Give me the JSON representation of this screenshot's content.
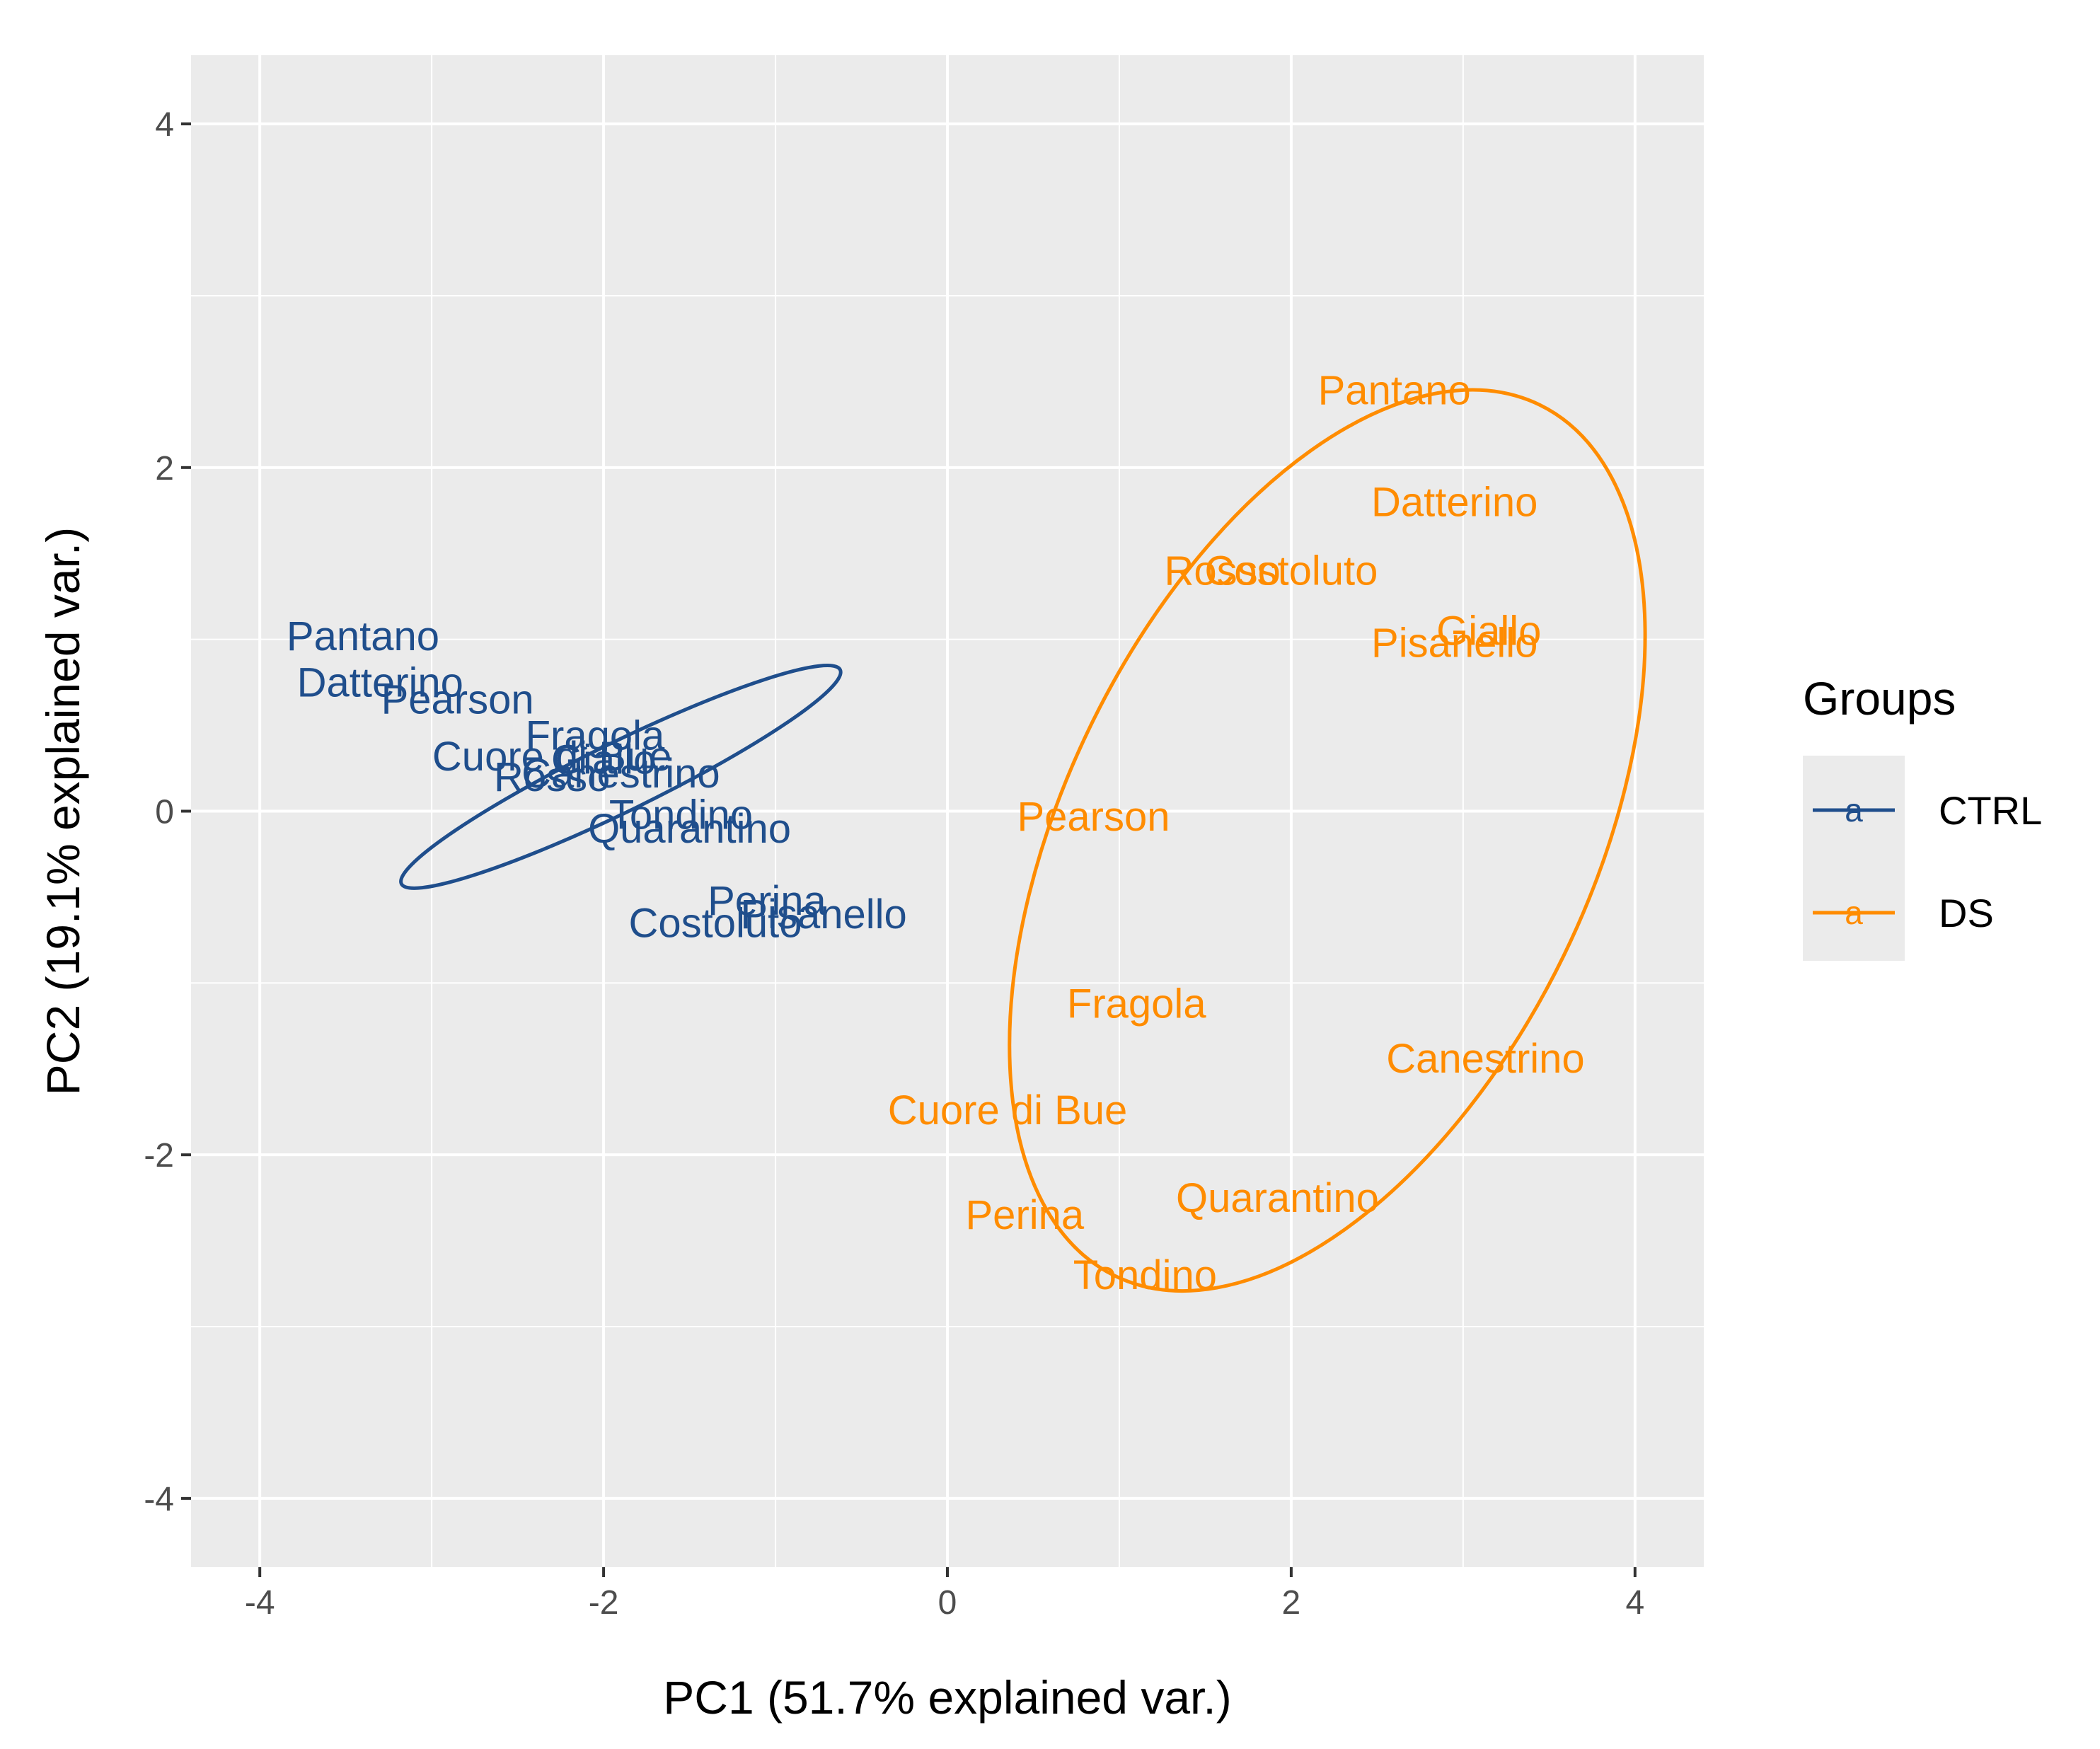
{
  "chart_data": {
    "type": "scatter",
    "title": "",
    "xlabel": "PC1 (51.7% explained var.)",
    "ylabel": "PC2 (19.1% explained var.)",
    "xlim": [
      -4.4,
      4.4
    ],
    "ylim": [
      -4.4,
      4.4
    ],
    "xticks": [
      -4,
      -2,
      0,
      2,
      4
    ],
    "yticks": [
      -4,
      -2,
      0,
      2,
      4
    ],
    "grid": true,
    "legend": {
      "title": "Groups",
      "position": "right",
      "key_glyph": "a",
      "entries": [
        "CTRL",
        "DS"
      ]
    },
    "series": [
      {
        "name": "CTRL",
        "color": "#1f4e8c",
        "points": [
          {
            "label": "Pantano",
            "x": -3.4,
            "y": 1.02
          },
          {
            "label": "Datterino",
            "x": -3.3,
            "y": 0.75
          },
          {
            "label": "Pearson",
            "x": -2.85,
            "y": 0.65
          },
          {
            "label": "Fragola",
            "x": -2.05,
            "y": 0.44
          },
          {
            "label": "Cuore di Bue",
            "x": -2.3,
            "y": 0.32
          },
          {
            "label": "Giallo",
            "x": -2.0,
            "y": 0.3
          },
          {
            "label": "Canestrino",
            "x": -1.9,
            "y": 0.22
          },
          {
            "label": "Rosso",
            "x": -2.3,
            "y": 0.2
          },
          {
            "label": "Tondino",
            "x": -1.55,
            "y": -0.02
          },
          {
            "label": "Quarantino",
            "x": -1.5,
            "y": -0.1
          },
          {
            "label": "Perina",
            "x": -1.05,
            "y": -0.52
          },
          {
            "label": "Pisanello",
            "x": -0.72,
            "y": -0.6
          },
          {
            "label": "Costoluto",
            "x": -1.35,
            "y": -0.65
          }
        ],
        "ellipse": {
          "center": [
            -1.9,
            0.2
          ],
          "rx": 1.42,
          "ry": 0.2,
          "angle_deg": -26
        }
      },
      {
        "name": "DS",
        "color": "#ff8c00",
        "points": [
          {
            "label": "Pantano",
            "x": 2.6,
            "y": 2.45
          },
          {
            "label": "Datterino",
            "x": 2.95,
            "y": 1.8
          },
          {
            "label": "Rosso",
            "x": 1.6,
            "y": 1.4
          },
          {
            "label": "Costoluto",
            "x": 2.0,
            "y": 1.4
          },
          {
            "label": "Giallo",
            "x": 3.15,
            "y": 1.05
          },
          {
            "label": "Pisanello",
            "x": 2.95,
            "y": 0.98
          },
          {
            "label": "Pearson",
            "x": 0.85,
            "y": -0.03
          },
          {
            "label": "Fragola",
            "x": 1.1,
            "y": -1.12
          },
          {
            "label": "Canestrino",
            "x": 3.13,
            "y": -1.44
          },
          {
            "label": "Cuore di Bue",
            "x": 0.35,
            "y": -1.74
          },
          {
            "label": "Quarantino",
            "x": 1.92,
            "y": -2.25
          },
          {
            "label": "Perina",
            "x": 0.45,
            "y": -2.35
          },
          {
            "label": "Tondino",
            "x": 1.15,
            "y": -2.7
          }
        ],
        "ellipse": {
          "center": [
            2.21,
            -0.17
          ],
          "rx": 1.53,
          "ry": 2.82,
          "angle_deg": 26
        }
      }
    ]
  }
}
